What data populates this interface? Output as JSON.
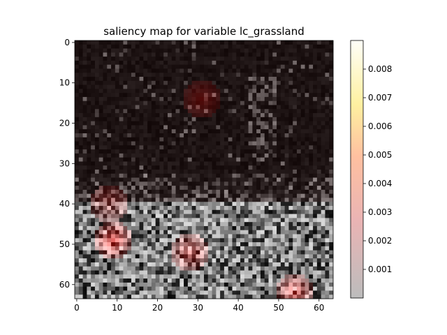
{
  "chart_data": {
    "type": "heatmap",
    "title": "saliency map for variable lc_grassland",
    "grid": false,
    "x_range": [
      0,
      63
    ],
    "y_range": [
      0,
      63
    ],
    "y_inverted": true,
    "x_ticks": [
      "0",
      "10",
      "20",
      "30",
      "40",
      "50",
      "60"
    ],
    "y_ticks": [
      "0",
      "10",
      "20",
      "30",
      "40",
      "50",
      "60"
    ],
    "colorbar": {
      "colormap": "hot",
      "range": [
        0.0,
        0.009
      ],
      "ticks": [
        "0.001",
        "0.002",
        "0.003",
        "0.004",
        "0.005",
        "0.006",
        "0.007",
        "0.008"
      ]
    },
    "hotspots": [
      {
        "x": 9,
        "y": 49,
        "value": 0.0065
      },
      {
        "x": 28,
        "y": 52,
        "value": 0.004
      },
      {
        "x": 54,
        "y": 62,
        "value": 0.005
      },
      {
        "x": 31,
        "y": 14,
        "value": 0.0025
      },
      {
        "x": 8,
        "y": 40,
        "value": 0.002
      }
    ]
  }
}
